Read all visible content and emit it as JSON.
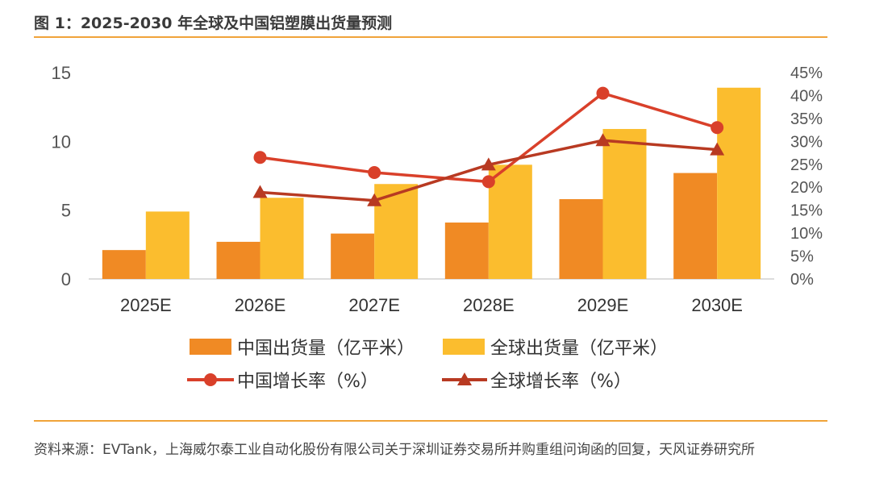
{
  "header": {
    "title": "图 1：2025-2030 年全球及中国铝塑膜出货量预测"
  },
  "footer": {
    "source": "资料来源：EVTank，上海威尔泰工业自动化股份有限公司关于深圳证券交易所并购重组问询函的回复，天风证券研究所"
  },
  "colors": {
    "china_bar": "#F08A24",
    "global_bar": "#FBBD2E",
    "china_line": "#D9402A",
    "global_line": "#B83A22",
    "rule": "#F0A33A"
  },
  "chart_data": {
    "type": "bar+line",
    "title": "2025-2030 年全球及中国铝塑膜出货量预测",
    "categories": [
      "2025E",
      "2026E",
      "2027E",
      "2028E",
      "2029E",
      "2030E"
    ],
    "y_left": {
      "ylim": [
        0,
        15
      ],
      "ticks": [
        "0",
        "5",
        "10",
        "15"
      ]
    },
    "y_right": {
      "ylim": [
        0,
        45
      ],
      "ticks": [
        "0%",
        "5%",
        "10%",
        "15%",
        "20%",
        "25%",
        "30%",
        "35%",
        "40%",
        "45%"
      ]
    },
    "series": [
      {
        "name": "中国出货量（亿平米）",
        "kind": "bar",
        "axis": "left",
        "values": [
          2.1,
          2.7,
          3.3,
          4.1,
          5.8,
          7.7
        ]
      },
      {
        "name": "全球出货量（亿平米）",
        "kind": "bar",
        "axis": "left",
        "values": [
          4.9,
          5.9,
          6.9,
          8.3,
          10.9,
          13.9
        ]
      },
      {
        "name": "中国增长率（%）",
        "kind": "line",
        "marker": "circle",
        "axis": "right",
        "values": [
          null,
          26.5,
          23.2,
          21.2,
          40.5,
          33.0
        ]
      },
      {
        "name": "全球增长率（%）",
        "kind": "line",
        "marker": "triangle",
        "axis": "right",
        "values": [
          null,
          18.9,
          17.1,
          24.9,
          30.2,
          28.2
        ]
      }
    ]
  }
}
